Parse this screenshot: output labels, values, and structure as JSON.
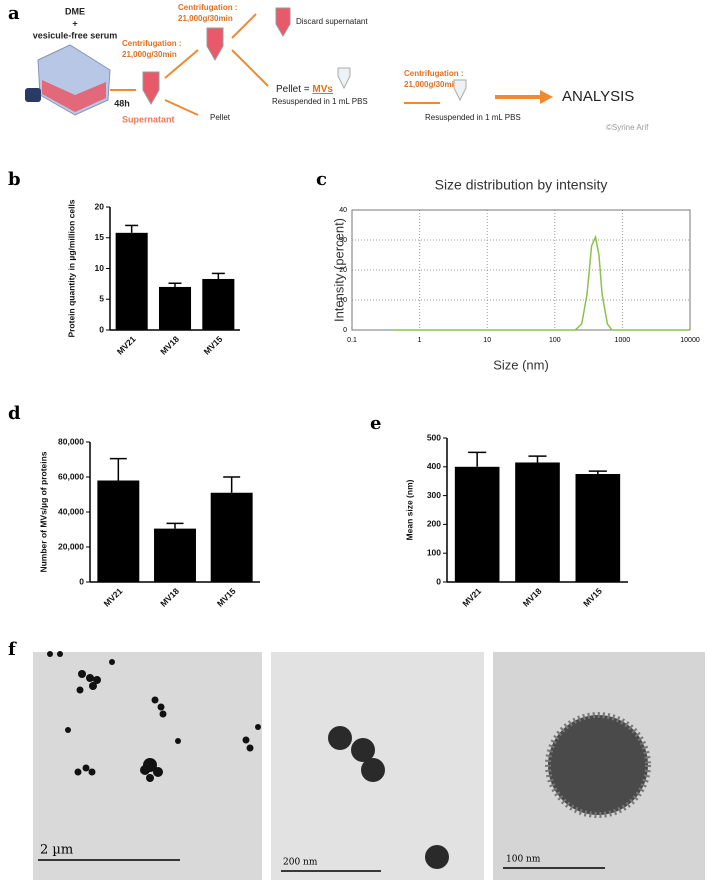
{
  "panel_labels": [
    "a",
    "b",
    "c",
    "d",
    "e",
    "f"
  ],
  "diagram": {
    "medium": "DME",
    "plus": "+",
    "serum": "vesicule-free serum",
    "time": "48h",
    "step1": {
      "label": "Centrifugation :",
      "speed": "21,000g/30min"
    },
    "supernatant": "Supernatant",
    "pellet1": "Pellet",
    "step2": {
      "label": "Centrifugation :",
      "speed": "21,000g/30min"
    },
    "discard": "Discard supernatant",
    "pellet2": "Pellet =",
    "mvs": "MVs",
    "resuspend1": "Resuspended in 1 mL PBS",
    "step3": {
      "label": "Centrifugation :",
      "speed": "21,000g/30min"
    },
    "resuspend2": "Resuspended in 1 mL PBS",
    "analysis": "ANALYSIS",
    "credit": "©Syrine Arif"
  },
  "chart_data": [
    {
      "type": "bar",
      "ylabel": "Protein quantity in µg/million cells",
      "categories": [
        "MV21",
        "MV18",
        "MV15"
      ],
      "values": [
        15.8,
        7.0,
        8.3
      ],
      "errors": [
        1.2,
        0.6,
        0.9
      ],
      "color": "#000000",
      "ylim": [
        0,
        20
      ],
      "yticks": [
        0,
        5,
        10,
        15,
        20
      ]
    },
    {
      "type": "line",
      "title": "Size distribution by intensity",
      "xlabel": "Size (nm)",
      "ylabel": "Intensity (percent)",
      "x": [
        0.4,
        200,
        250,
        300,
        350,
        400,
        450,
        500,
        600,
        700,
        10000
      ],
      "series": [
        {
          "color": "#8bc34a",
          "values": [
            0,
            0,
            2,
            12,
            28,
            31,
            25,
            12,
            2,
            0,
            0
          ]
        }
      ],
      "xscale": "log",
      "xlim": [
        0.1,
        10000
      ],
      "xticks": [
        0.1,
        1,
        10,
        100,
        1000,
        10000
      ],
      "ylim": [
        0,
        40
      ],
      "yticks": [
        0,
        10,
        20,
        30,
        40
      ],
      "grid": true
    },
    {
      "type": "bar",
      "ylabel": "Number of MVs/µg of proteins",
      "categories": [
        "MV21",
        "MV18",
        "MV15"
      ],
      "values": [
        58000,
        30500,
        51000
      ],
      "errors": [
        12500,
        3000,
        9000
      ],
      "color": "#000000",
      "ylim": [
        0,
        80000
      ],
      "yticks": [
        0,
        {
          "value": 20000,
          "label": "20,000"
        },
        {
          "value": 40000,
          "label": "40,000"
        },
        {
          "value": 60000,
          "label": "60,000"
        },
        {
          "value": 80000,
          "label": "80,000"
        }
      ]
    },
    {
      "type": "bar",
      "ylabel": "Mean size (nm)",
      "categories": [
        "MV21",
        "MV18",
        "MV15"
      ],
      "values": [
        400,
        415,
        375
      ],
      "errors": [
        50,
        22,
        10
      ],
      "color": "#000000",
      "ylim": [
        0,
        500
      ],
      "yticks": [
        0,
        100,
        200,
        300,
        400,
        500
      ]
    }
  ],
  "micrographs": {
    "scale_labels": [
      "2 µm",
      "200 nm",
      "100 nm"
    ]
  }
}
